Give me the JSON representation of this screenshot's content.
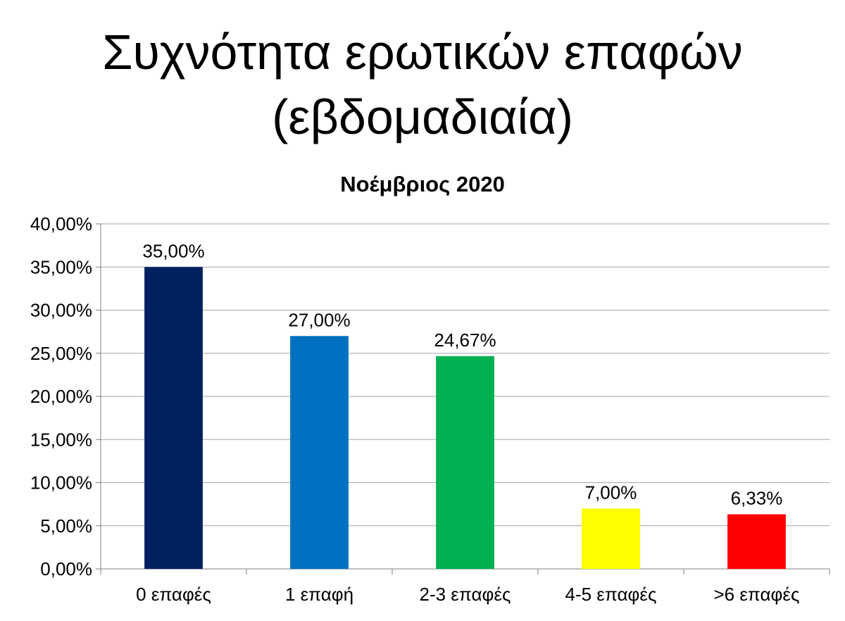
{
  "slide": {
    "title_line1": "Συχνότητα ερωτικών επαφών",
    "title_line2": "(εβδομαδιαία)"
  },
  "chart_data": {
    "type": "bar",
    "title": "Νοέμβριος 2020",
    "xlabel": "",
    "ylabel": "",
    "categories": [
      "0 επαφές",
      "1 επαφή",
      "2-3 επαφές",
      "4-5 επαφές",
      ">6 επαφές"
    ],
    "values": [
      35.0,
      27.0,
      24.67,
      7.0,
      6.33
    ],
    "data_labels": [
      "35,00%",
      "27,00%",
      "24,67%",
      "7,00%",
      "6,33%"
    ],
    "colors": [
      "#002060",
      "#0070C0",
      "#00B050",
      "#FFFF00",
      "#FF0000"
    ],
    "ylim": [
      0,
      40
    ],
    "yticks": [
      0,
      5,
      10,
      15,
      20,
      25,
      30,
      35,
      40
    ],
    "ytick_labels": [
      "0,00%",
      "5,00%",
      "10,00%",
      "15,00%",
      "20,00%",
      "25,00%",
      "30,00%",
      "35,00%",
      "40,00%"
    ],
    "grid": true,
    "legend": "none"
  }
}
